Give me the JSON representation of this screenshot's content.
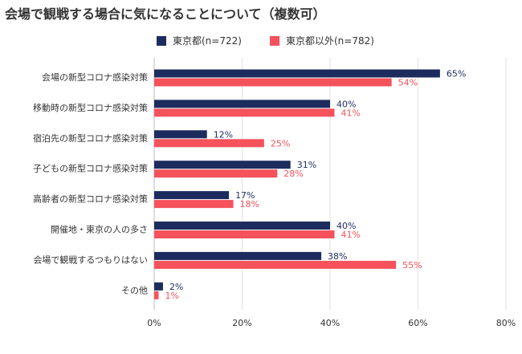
{
  "chart_data": {
    "type": "bar",
    "orientation": "horizontal",
    "title": "会場で観戦する場合に気になることについて（複数可）",
    "categories": [
      "会場の新型コロナ感染対策",
      "移動時の新型コロナ感染対策",
      "宿泊先の新型コロナ感染対策",
      "子どもの新型コロナ感染対策",
      "高齢者の新型コロナ感染対策",
      "開催地・東京の人の多さ",
      "会場で観戦するつもりはない",
      "その他"
    ],
    "series": [
      {
        "name": "東京都(n=722)",
        "color": "#1d2c5e",
        "values": [
          65,
          40,
          12,
          31,
          17,
          40,
          38,
          2
        ]
      },
      {
        "name": "東京都以外(n=782)",
        "color": "#f5525c",
        "values": [
          54,
          41,
          25,
          28,
          18,
          41,
          55,
          1
        ]
      }
    ],
    "xlim": [
      0,
      80
    ],
    "xticks": [
      0,
      20,
      40,
      60,
      80
    ],
    "tick_suffix": "%",
    "grid": "vertical",
    "legend_position": "top"
  }
}
